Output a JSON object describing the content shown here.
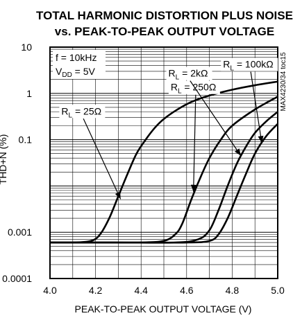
{
  "chart_data": {
    "type": "line",
    "title": "TOTAL HARMONIC DISTORTION PLUS NOISE",
    "subtitle": "vs. PEAK-TO-PEAK OUTPUT VOLTAGE",
    "xlabel": "PEAK-TO-PEAK OUTPUT VOLTAGE (V)",
    "ylabel": "THD+N (%)",
    "xlim": [
      4.0,
      5.0
    ],
    "ylim": [
      0.0001,
      10
    ],
    "yscale": "log",
    "grid": true,
    "x_ticks": [
      "4.0",
      "4.2",
      "4.4",
      "4.6",
      "4.8",
      "5.0"
    ],
    "y_ticks": [
      "10",
      "1",
      "0.1",
      "0.001",
      "0.0001"
    ],
    "conditions": [
      {
        "label": "f = 10kHz"
      },
      {
        "label": "V",
        "sub": "DD",
        "tail": " = 5V"
      }
    ],
    "side_note": "MAX4230/34 toc15",
    "series": [
      {
        "name": "RL = 25Ω",
        "label_main": "R",
        "label_sub": "L",
        "label_tail": " = 25Ω",
        "x": [
          4.0,
          4.1,
          4.18,
          4.22,
          4.26,
          4.3,
          4.34,
          4.38,
          4.42,
          4.46,
          4.5,
          4.56,
          4.62,
          4.7,
          4.8,
          4.9,
          5.0
        ],
        "y": [
          0.0006,
          0.0006,
          0.00065,
          0.0009,
          0.002,
          0.006,
          0.018,
          0.05,
          0.1,
          0.18,
          0.28,
          0.45,
          0.65,
          0.9,
          1.2,
          1.5,
          1.8
        ]
      },
      {
        "name": "RL = 250Ω",
        "label_main": "R",
        "label_sub": "L",
        "label_tail": " = 250Ω",
        "x": [
          4.0,
          4.2,
          4.4,
          4.5,
          4.55,
          4.58,
          4.62,
          4.66,
          4.7,
          4.75,
          4.8,
          4.9,
          5.0
        ],
        "y": [
          0.0006,
          0.0006,
          0.0006,
          0.00065,
          0.0009,
          0.0015,
          0.005,
          0.015,
          0.04,
          0.1,
          0.2,
          0.45,
          0.85
        ]
      },
      {
        "name": "RL = 2kΩ",
        "label_main": "R",
        "label_sub": "L",
        "label_tail": " = 2kΩ",
        "x": [
          4.0,
          4.3,
          4.55,
          4.65,
          4.7,
          4.74,
          4.78,
          4.82,
          4.86,
          4.9,
          4.95,
          5.0
        ],
        "y": [
          0.0006,
          0.0006,
          0.0006,
          0.0007,
          0.0011,
          0.003,
          0.01,
          0.03,
          0.07,
          0.14,
          0.25,
          0.4
        ]
      },
      {
        "name": "RL = 100kΩ",
        "label_main": "R",
        "label_sub": "L",
        "label_tail": " = 100kΩ",
        "x": [
          4.0,
          4.3,
          4.6,
          4.7,
          4.74,
          4.78,
          4.82,
          4.86,
          4.9,
          4.95,
          5.0
        ],
        "y": [
          0.0006,
          0.0006,
          0.0006,
          0.00065,
          0.0009,
          0.002,
          0.006,
          0.018,
          0.05,
          0.12,
          0.22
        ]
      }
    ],
    "annotations": [
      {
        "series": 0,
        "label_x": 4.05,
        "label_y": 0.35,
        "arrow_x": 4.31,
        "arrow_y": 0.0052
      },
      {
        "series": 1,
        "label_x": 4.53,
        "label_y": 1.15,
        "arrow_x": 4.63,
        "arrow_y": 0.0075
      },
      {
        "series": 2,
        "label_x": 4.52,
        "label_y": 2.3,
        "arrow_x": 4.838,
        "arrow_y": 0.045
      },
      {
        "series": 3,
        "label_x": 4.76,
        "label_y": 3.6,
        "arrow_x": 4.93,
        "arrow_y": 0.085
      }
    ]
  }
}
